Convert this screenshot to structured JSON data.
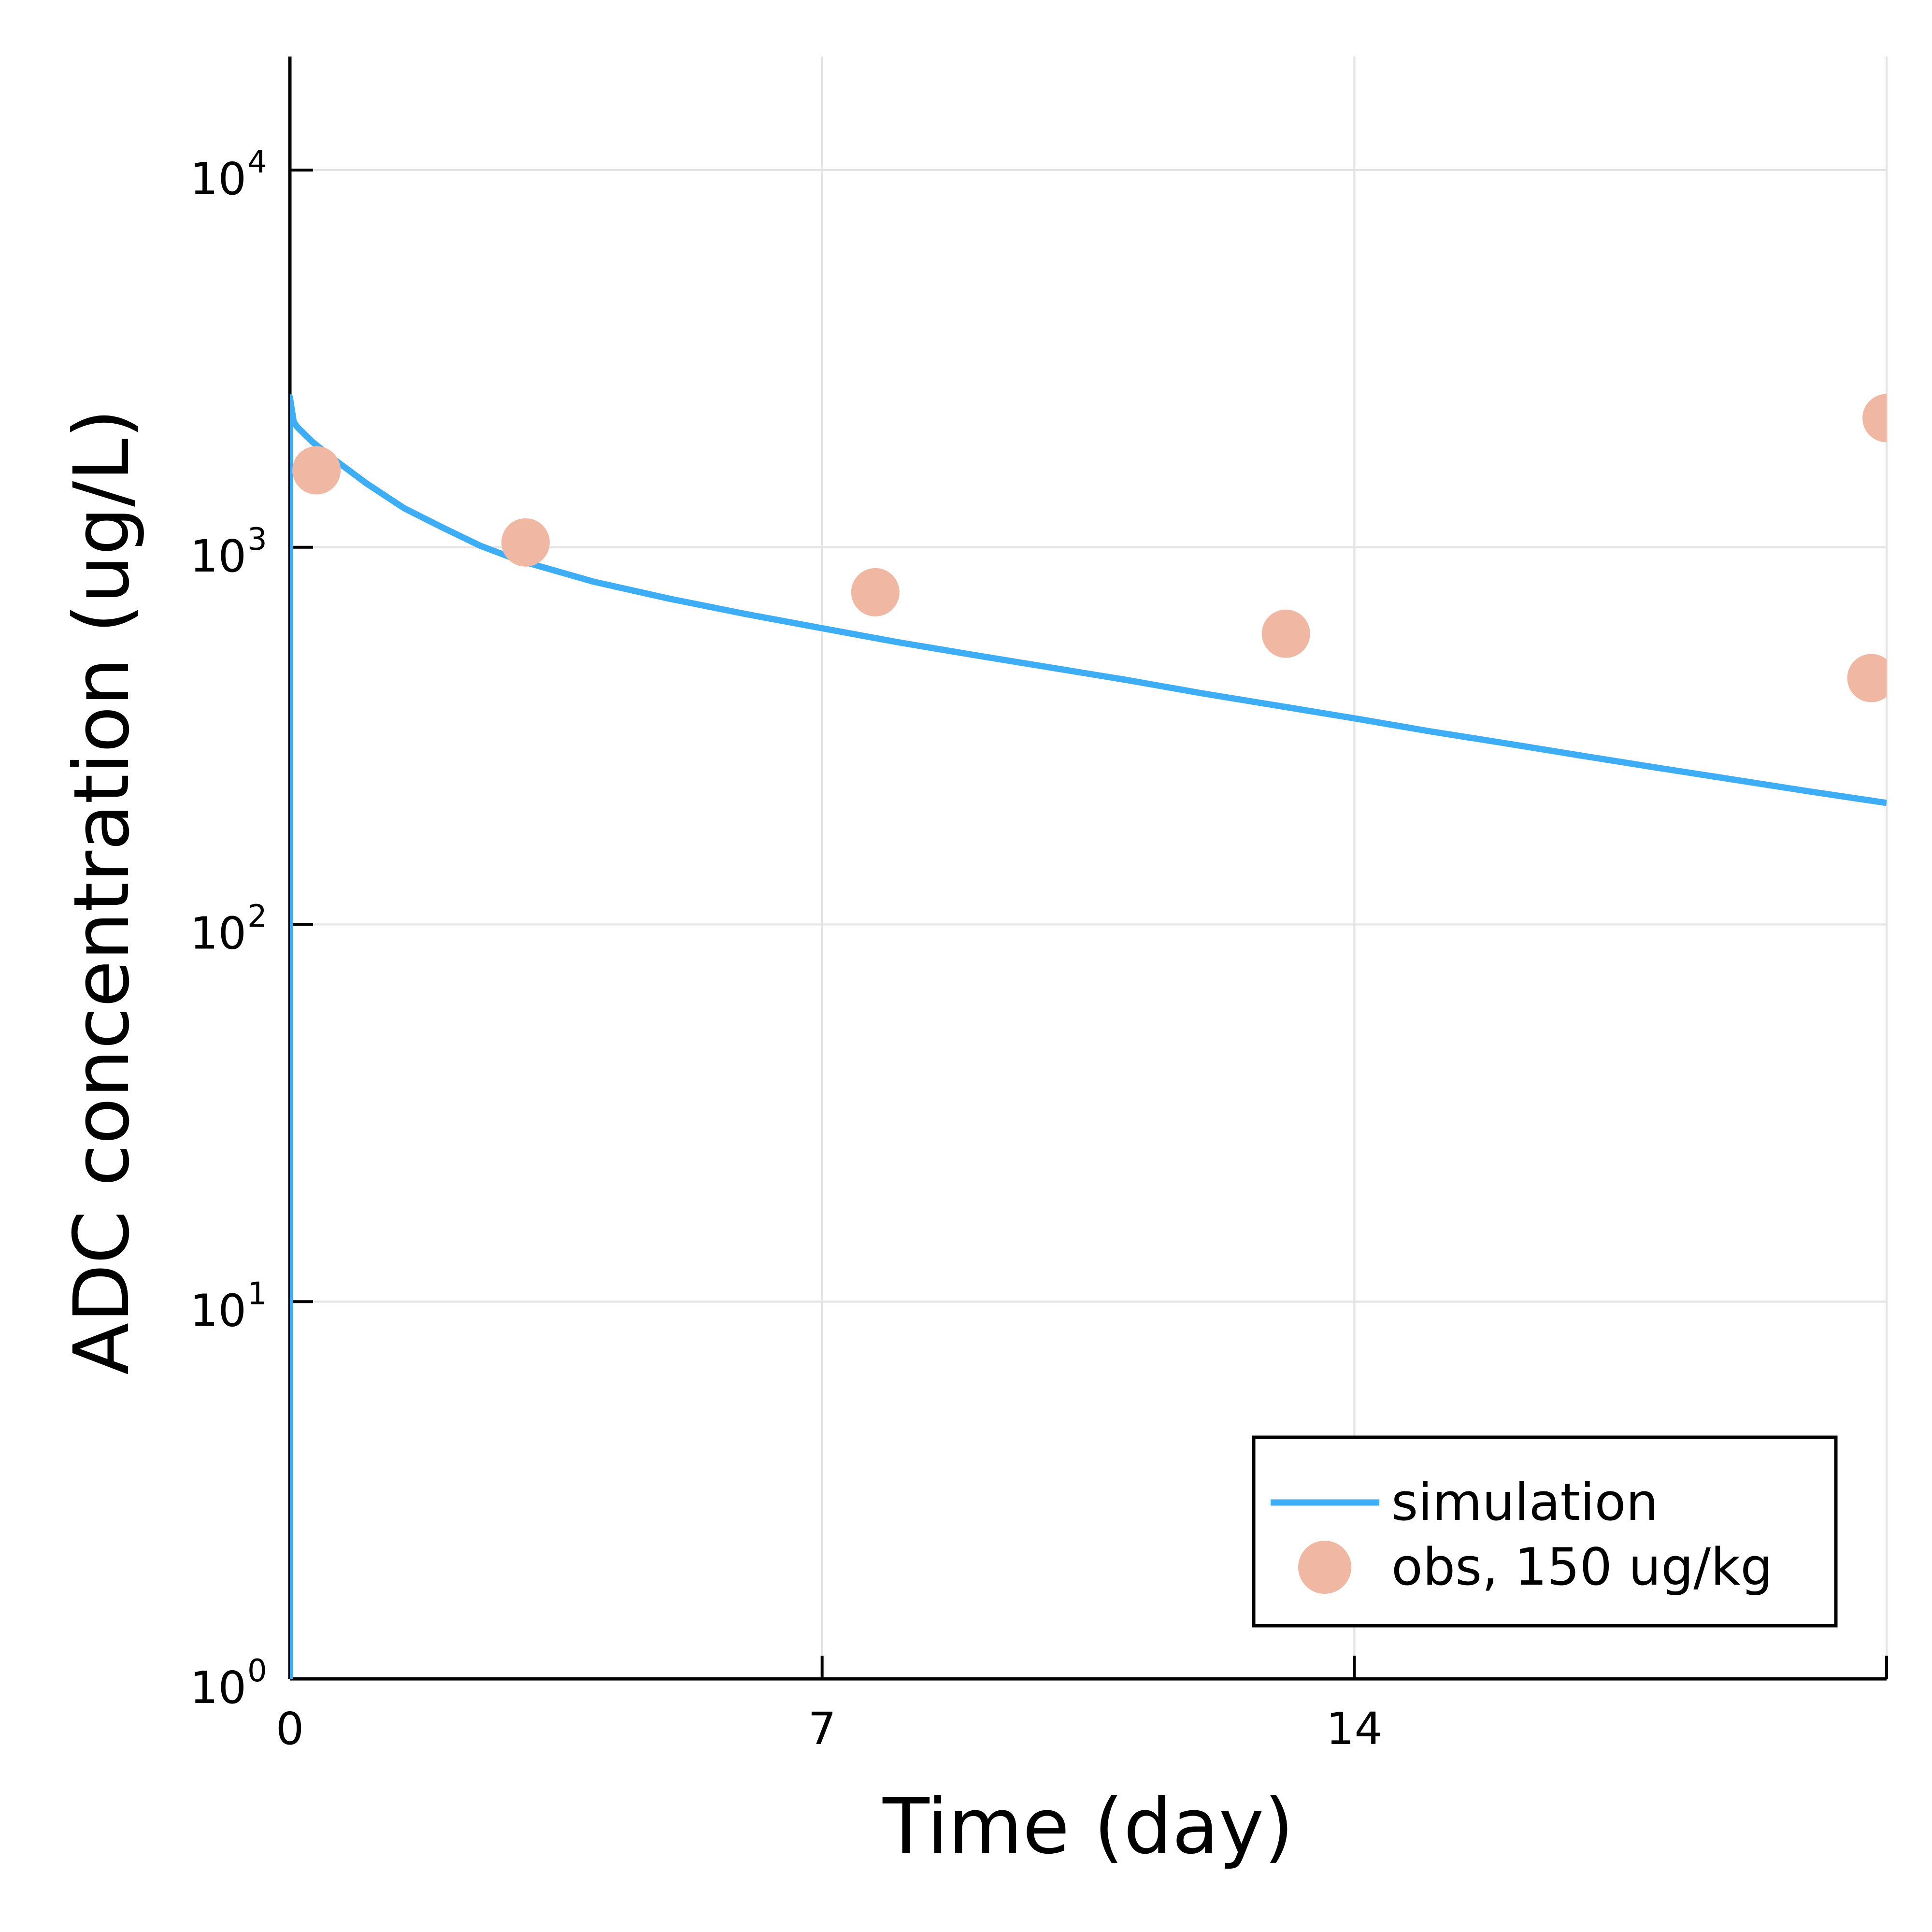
{
  "chart_data": {
    "type": "line",
    "title": "",
    "xlabel": "Time (day)",
    "ylabel": "ADC concentration (ug/L)",
    "xlim": [
      0,
      21
    ],
    "ylim": [
      1,
      20000
    ],
    "yscale": "log",
    "grid": true,
    "legend_position": "bottom-right",
    "x_ticks": [
      {
        "value": 0,
        "label": "0"
      },
      {
        "value": 7,
        "label": "7"
      },
      {
        "value": 14,
        "label": "14"
      }
    ],
    "y_ticks": [
      {
        "value": 1,
        "base": "10",
        "exp": "0"
      },
      {
        "value": 10,
        "base": "10",
        "exp": "1"
      },
      {
        "value": 100,
        "base": "10",
        "exp": "2"
      },
      {
        "value": 1000,
        "base": "10",
        "exp": "3"
      },
      {
        "value": 10000,
        "base": "10",
        "exp": "4"
      }
    ],
    "series": [
      {
        "name": "simulation",
        "kind": "line",
        "color": "#3daef5",
        "x": [
          0,
          0,
          0.05,
          0.1,
          0.3,
          0.6,
          1,
          1.5,
          2,
          2.5,
          3,
          4,
          5,
          6,
          7,
          8,
          9,
          10,
          11,
          12,
          13,
          14,
          15,
          16,
          17,
          18,
          19,
          20,
          21
        ],
        "y": [
          1,
          2500,
          2150,
          2080,
          1900,
          1700,
          1480,
          1270,
          1130,
          1010,
          925,
          810,
          730,
          665,
          610,
          560,
          518,
          480,
          445,
          410,
          380,
          352,
          325,
          302,
          280,
          260,
          242,
          225,
          210
        ]
      },
      {
        "name": "obs, 150 ug/kg",
        "kind": "scatter",
        "color": "#f0b8a3",
        "x": [
          0.35,
          3.1,
          7.7,
          13.1,
          20.8,
          21.0
        ],
        "y": [
          1600,
          1030,
          760,
          590,
          450,
          2200
        ]
      }
    ]
  }
}
